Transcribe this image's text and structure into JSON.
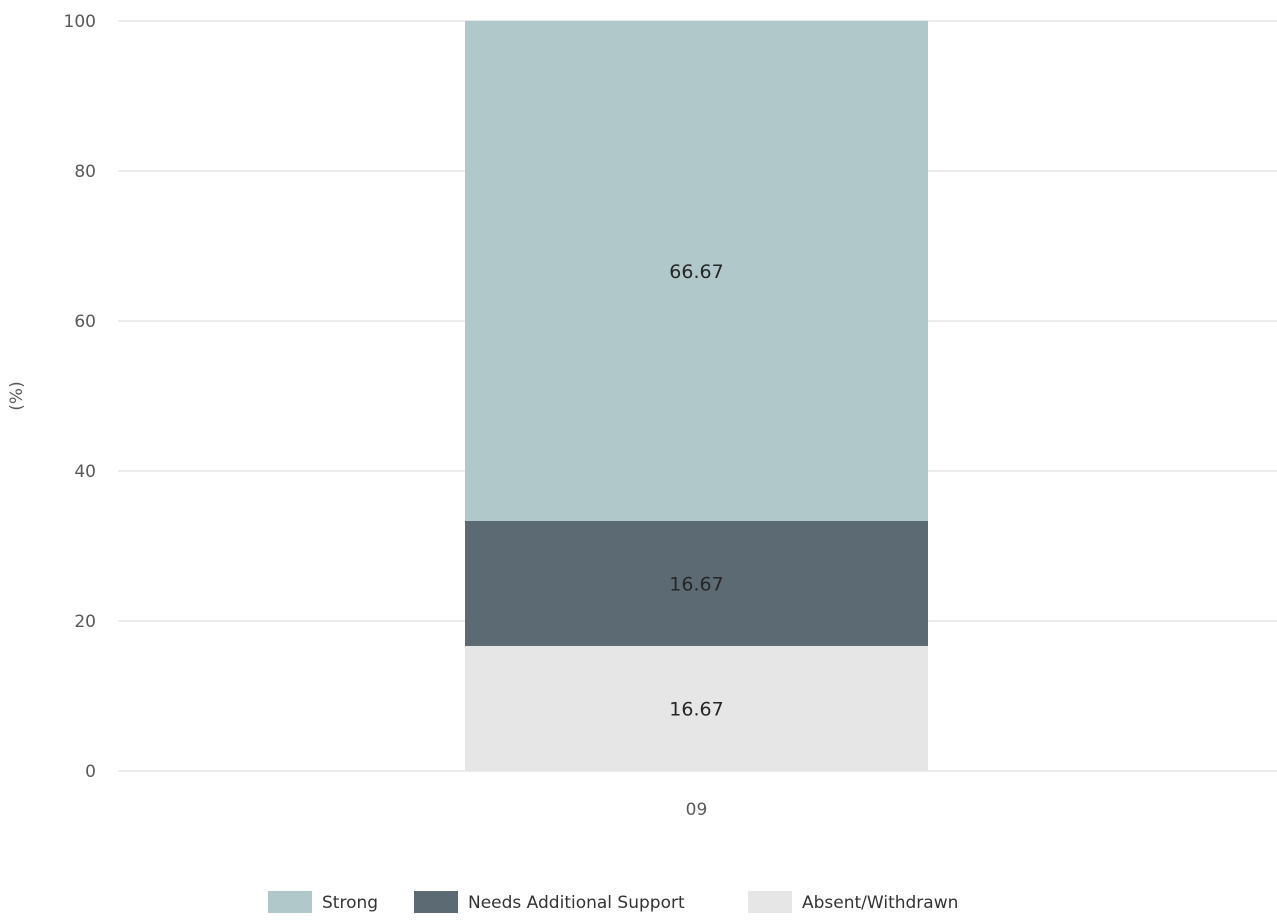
{
  "chart_data": {
    "type": "bar",
    "stacked": true,
    "categories": [
      "09"
    ],
    "series": [
      {
        "name": "Absent/Withdrawn",
        "values": [
          16.67
        ],
        "color": "#e6e6e6"
      },
      {
        "name": "Needs Additional Support",
        "values": [
          16.67
        ],
        "color": "#5c6a73"
      },
      {
        "name": "Strong",
        "values": [
          66.67
        ],
        "color": "#b0c8c9"
      }
    ],
    "legend_order": [
      "Strong",
      "Needs Additional Support",
      "Absent/Withdrawn"
    ],
    "ylabel": "(%)",
    "ylim": [
      0,
      100
    ],
    "yticks": [
      0,
      20,
      40,
      60,
      80,
      100
    ],
    "grid": true,
    "legend_position": "bottom"
  }
}
